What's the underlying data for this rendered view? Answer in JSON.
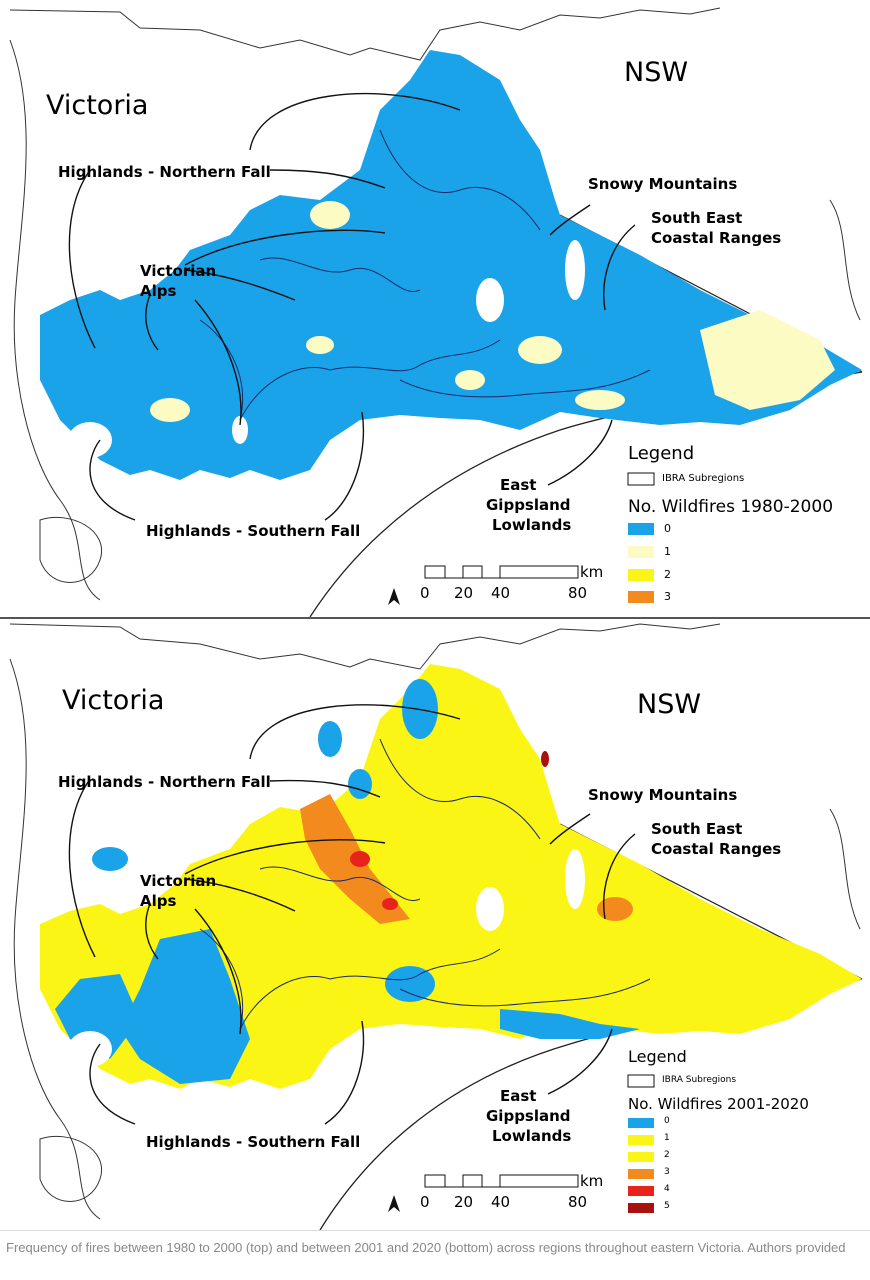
{
  "maps": [
    {
      "state_left": "Victoria",
      "state_right": "NSW",
      "regions": {
        "northern_fall": "Highlands - Northern Fall",
        "snowy": "Snowy Mountains",
        "secr_1": "South East",
        "secr_2": "Coastal Ranges",
        "alps_1": "Victorian",
        "alps_2": "Alps",
        "southern_fall": "Highlands - Southern Fall",
        "egl_1": "East",
        "egl_2": "Gippsland",
        "egl_3": "Lowlands"
      },
      "legend": {
        "title": "Legend",
        "ibra": "IBRA Subregions",
        "heading": "No. Wildfires 1980-2000",
        "classes": [
          {
            "label": "0",
            "color": "#1aa3e8"
          },
          {
            "label": "1",
            "color": "#fdfbc4"
          },
          {
            "label": "2",
            "color": "#fbf516"
          },
          {
            "label": "3",
            "color": "#f28a1e"
          }
        ]
      },
      "scale": {
        "unit": "km",
        "t0": "0",
        "t1": "20",
        "t2": "40",
        "t3": "80"
      }
    },
    {
      "state_left": "Victoria",
      "state_right": "NSW",
      "regions": {
        "northern_fall": "Highlands - Northern Fall",
        "snowy": "Snowy Mountains",
        "secr_1": "South East",
        "secr_2": "Coastal Ranges",
        "alps_1": "Victorian",
        "alps_2": "Alps",
        "southern_fall": "Highlands - Southern Fall",
        "egl_1": "East",
        "egl_2": "Gippsland",
        "egl_3": "Lowlands"
      },
      "legend": {
        "title": "Legend",
        "ibra": "IBRA Subregions",
        "heading": "No. Wildfires 2001-2020",
        "classes": [
          {
            "label": "0",
            "color": "#1aa3e8"
          },
          {
            "label": "1",
            "color": "#fbf516"
          },
          {
            "label": "2",
            "color": "#fbf516"
          },
          {
            "label": "3",
            "color": "#f28a1e"
          },
          {
            "label": "4",
            "color": "#e8231c"
          },
          {
            "label": "5",
            "color": "#a8120e"
          }
        ]
      },
      "scale": {
        "unit": "km",
        "t0": "0",
        "t1": "20",
        "t2": "40",
        "t3": "80"
      }
    }
  ],
  "caption": "Frequency of fires between 1980 to 2000 (top) and between 2001 and 2020 (bottom) across regions throughout eastern Victoria. Authors provided"
}
